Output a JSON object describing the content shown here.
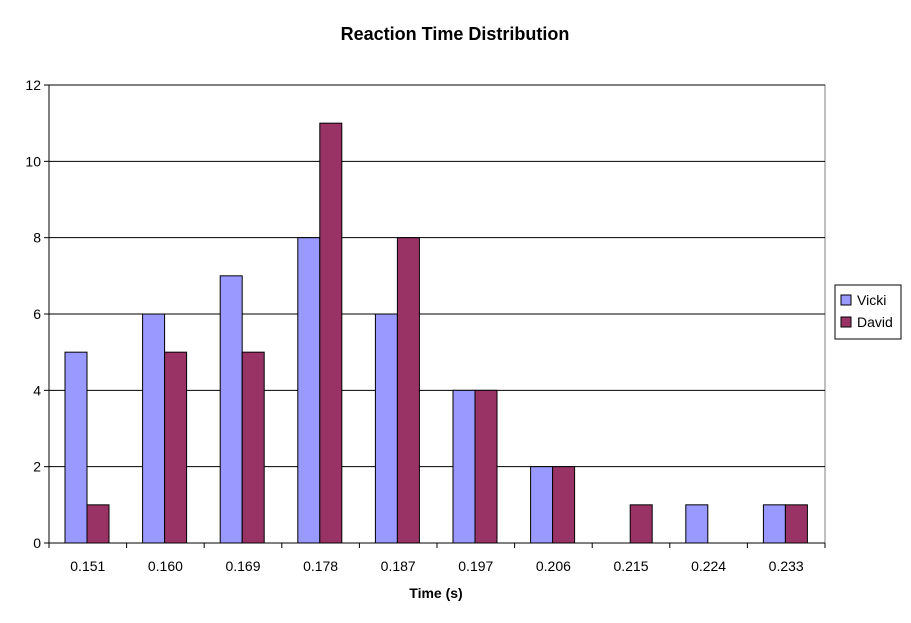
{
  "chart_data": {
    "type": "bar",
    "title": "Reaction Time Distribution",
    "xlabel": "Time (s)",
    "ylabel": "",
    "ylim": [
      0,
      12
    ],
    "yticks": [
      0,
      2,
      4,
      6,
      8,
      10,
      12
    ],
    "grid": true,
    "legend_position": "right",
    "categories": [
      "0.151",
      "0.160",
      "0.169",
      "0.178",
      "0.187",
      "0.197",
      "0.206",
      "0.215",
      "0.224",
      "0.233"
    ],
    "series": [
      {
        "name": "Vicki",
        "color": "#9999ff",
        "values": [
          5,
          6,
          7,
          8,
          6,
          4,
          2,
          0,
          1,
          1
        ]
      },
      {
        "name": "David",
        "color": "#993366",
        "values": [
          1,
          5,
          5,
          11,
          8,
          4,
          2,
          1,
          0,
          1
        ]
      }
    ]
  }
}
